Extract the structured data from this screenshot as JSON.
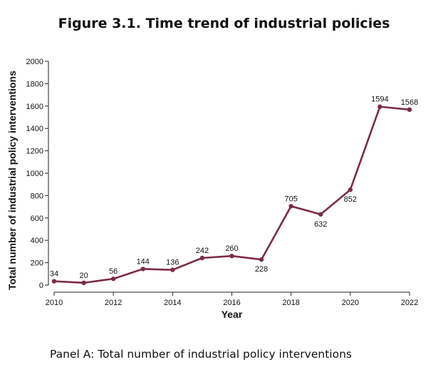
{
  "figure_title": "Figure 3.1. Time trend of industrial policies",
  "panel_caption": "Panel A: Total number of industrial policy interventions",
  "chart_data": {
    "type": "line",
    "title": "",
    "xlabel": "Year",
    "ylabel": "Total number of industrial policy interventions",
    "x": [
      2010,
      2011,
      2012,
      2013,
      2014,
      2015,
      2016,
      2017,
      2018,
      2019,
      2020,
      2021,
      2022
    ],
    "series": [
      {
        "values": [
          34,
          20,
          56,
          144,
          136,
          242,
          260,
          228,
          705,
          632,
          852,
          1594,
          1568
        ]
      }
    ],
    "data_labels": [
      "34",
      "20",
      "56",
      "144",
      "136",
      "242",
      "260",
      "228",
      "705",
      "632",
      "852",
      "1594",
      "1568"
    ],
    "xticks": [
      2010,
      2012,
      2014,
      2016,
      2018,
      2020,
      2022
    ],
    "yticks": [
      0,
      200,
      400,
      600,
      800,
      1000,
      1200,
      1400,
      1600,
      1800,
      2000
    ],
    "xlim": [
      2010,
      2022
    ],
    "ylim": [
      0,
      2000
    ],
    "grid": false,
    "line_color": "#7b2d42"
  }
}
